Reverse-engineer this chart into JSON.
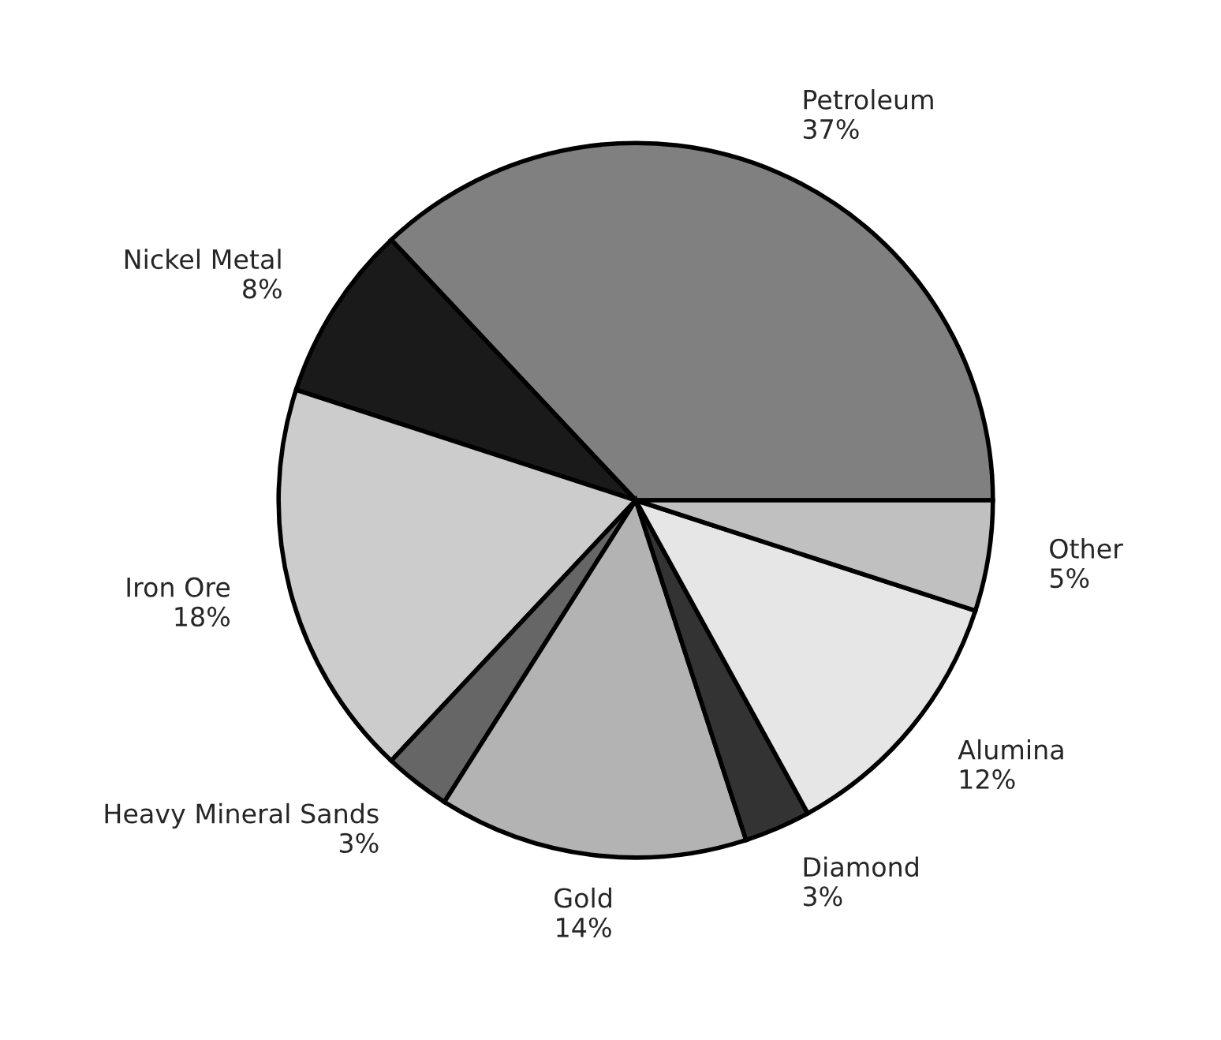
{
  "chart_data": {
    "type": "pie",
    "categories": [
      "Petroleum",
      "Nickel Metal",
      "Iron Ore",
      "Heavy Mineral Sands",
      "Gold",
      "Diamond",
      "Alumina",
      "Other"
    ],
    "values": [
      37,
      8,
      18,
      3,
      14,
      3,
      12,
      5
    ],
    "colors": [
      "#808080",
      "#1a1a1a",
      "#cccccc",
      "#666666",
      "#b3b3b3",
      "#333333",
      "#e6e6e6",
      "#c0c0c0"
    ],
    "value_labels": [
      "37%",
      "8%",
      "18%",
      "3%",
      "14%",
      "3%",
      "12%",
      "5%"
    ]
  }
}
